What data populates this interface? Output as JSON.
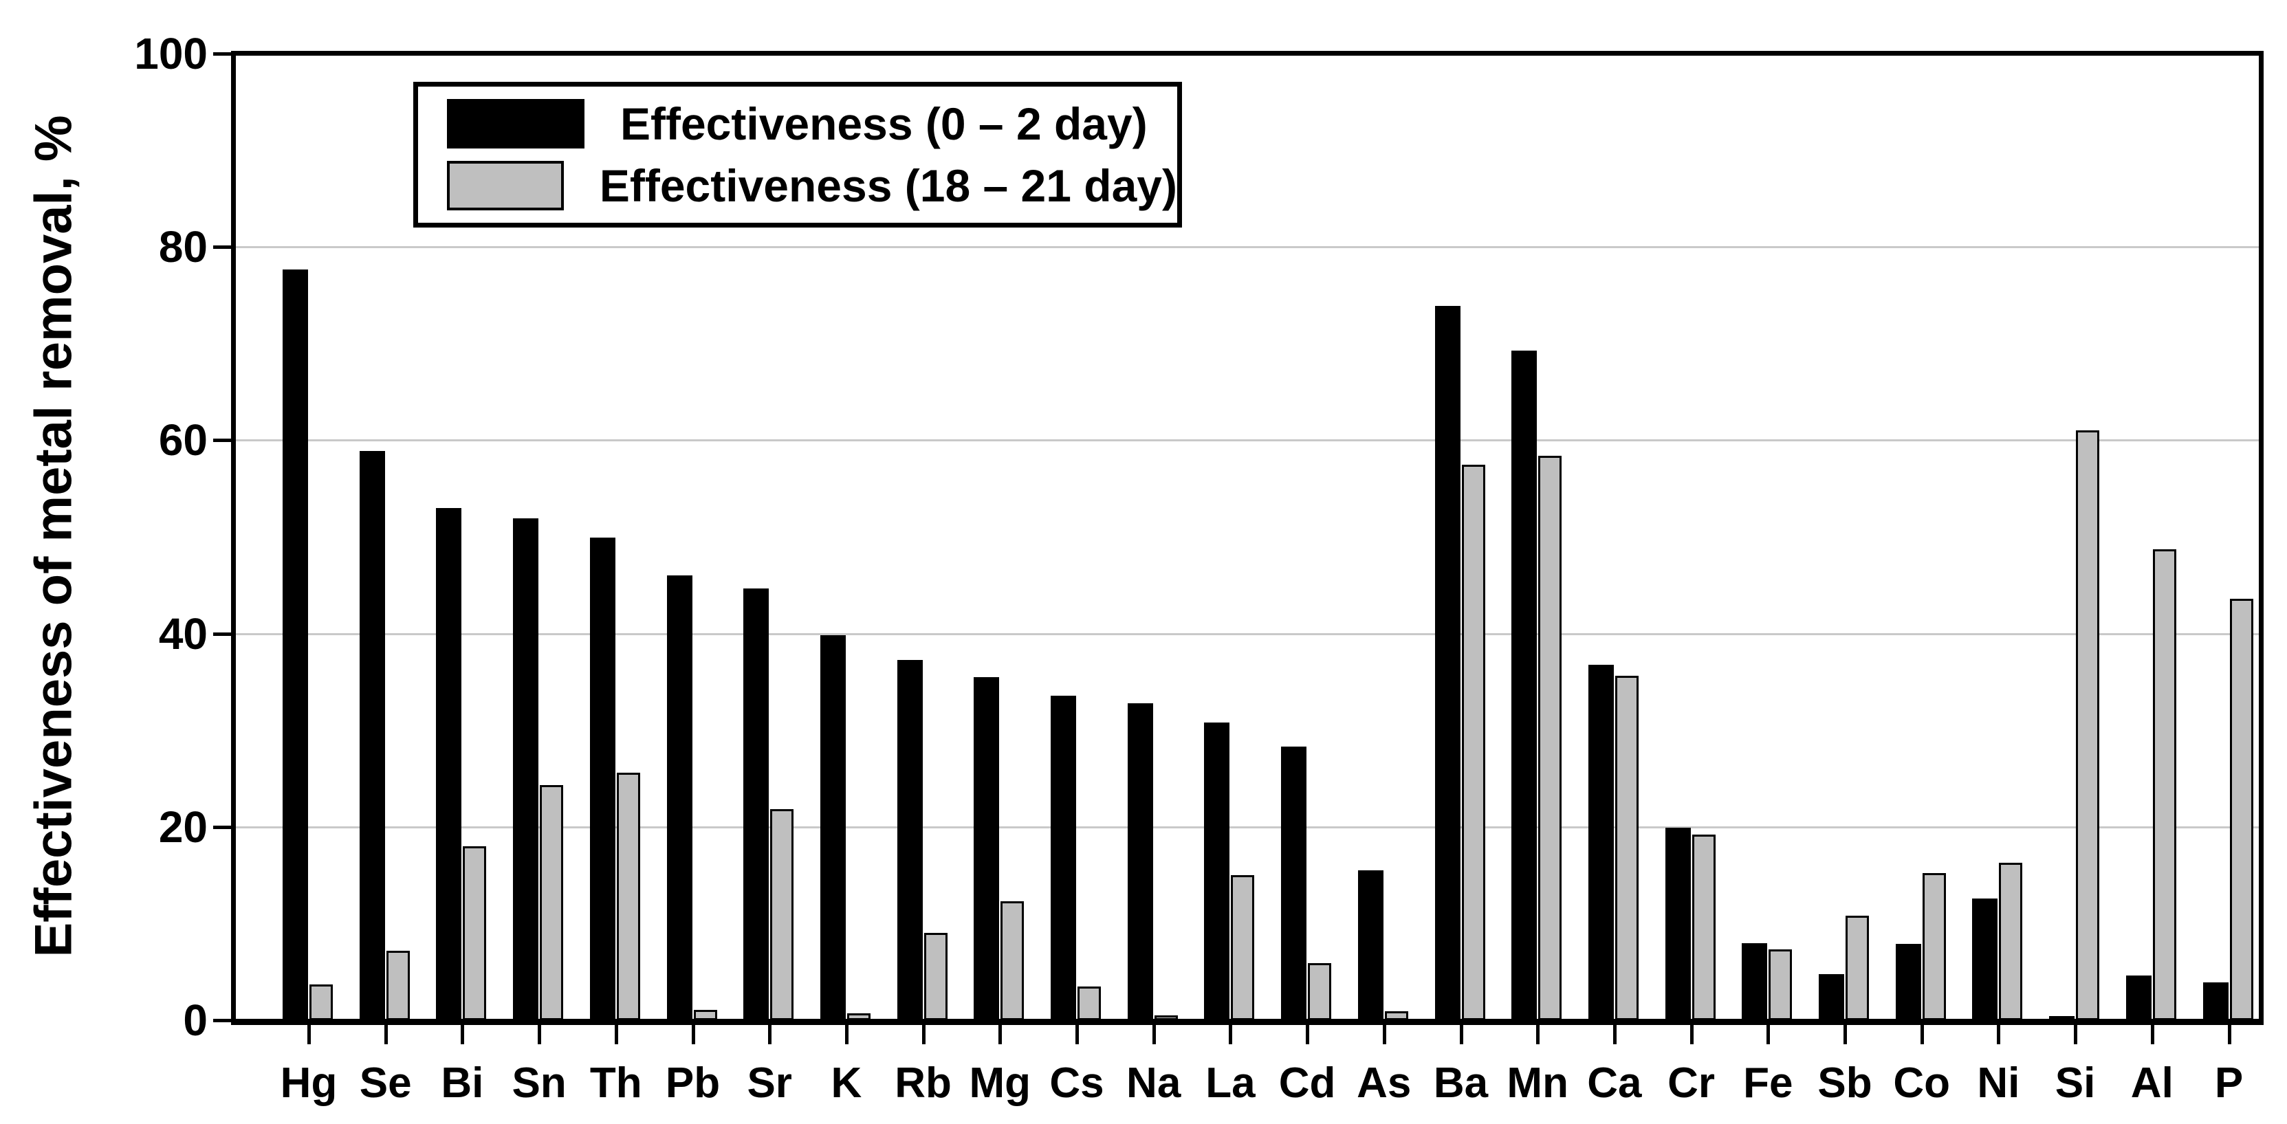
{
  "figure": {
    "background": "#ffffff",
    "y_axis_title": "Effectiveness of metal removal, %"
  },
  "legend": {
    "items": [
      {
        "label": "Effectiveness (0 – 2 day)",
        "color": "#000000"
      },
      {
        "label": "Effectiveness (18 – 21 day)",
        "color": "#bfbfbf"
      }
    ]
  },
  "colors": {
    "series1": "#000000",
    "series2": "#bfbfbf",
    "gridline": "#c9c9c9",
    "axis": "#000000"
  },
  "chart_data": {
    "type": "bar",
    "title": "",
    "xlabel": "",
    "ylabel": "Effectiveness of metal removal, %",
    "ylim": [
      0,
      100
    ],
    "yticks": [
      0,
      20,
      40,
      60,
      80,
      100
    ],
    "grid": "horizontal gridlines at 20, 40, 60, 80",
    "legend_position": "top-left inside plot",
    "categories": [
      "Hg",
      "Se",
      "Bi",
      "Sn",
      "Th",
      "Pb",
      "Sr",
      "K",
      "Rb",
      "Mg",
      "Cs",
      "Na",
      "La",
      "Cd",
      "As",
      "Ba",
      "Mn",
      "Ca",
      "Cr",
      "Fe",
      "Sb",
      "Co",
      "Ni",
      "Si",
      "Al",
      "P"
    ],
    "series": [
      {
        "name": "Effectiveness (0 – 2 day)",
        "color": "#000000",
        "values": [
          77.7,
          58.9,
          53.0,
          51.9,
          49.9,
          46.0,
          44.7,
          39.8,
          37.3,
          35.5,
          33.6,
          32.8,
          30.8,
          28.3,
          15.5,
          73.9,
          69.3,
          36.8,
          19.9,
          8.0,
          4.8,
          7.9,
          12.6,
          0.4,
          4.6,
          3.9
        ]
      },
      {
        "name": "Effectiveness (18 – 21 day)",
        "color": "#bfbfbf",
        "values": [
          3.7,
          7.2,
          18.0,
          24.3,
          25.6,
          1.1,
          21.8,
          0.7,
          9.0,
          12.3,
          3.5,
          0.5,
          15.0,
          5.9,
          0.9,
          57.5,
          58.4,
          35.6,
          19.2,
          7.3,
          10.8,
          15.2,
          16.3,
          61.0,
          48.7,
          43.6
        ]
      }
    ]
  }
}
